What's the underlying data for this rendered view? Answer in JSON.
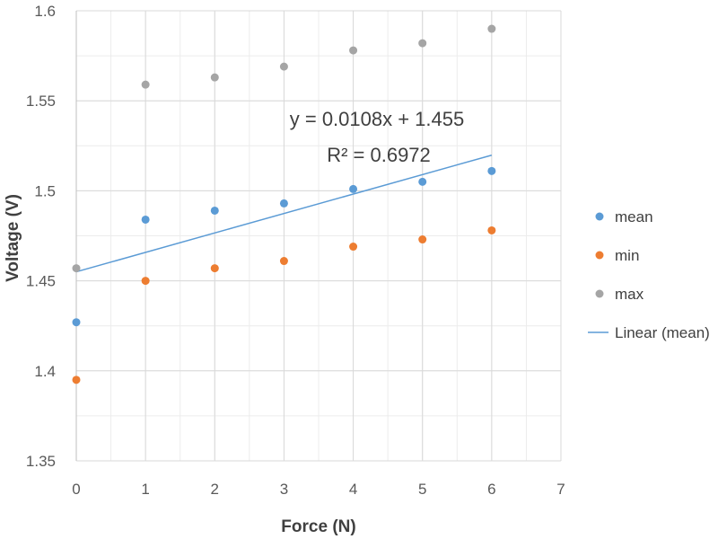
{
  "chart_data": {
    "type": "scatter",
    "title": "",
    "xlabel": "Force   (N)",
    "ylabel": "Voltage   (V)",
    "xlim": [
      0,
      7
    ],
    "ylim": [
      1.35,
      1.6
    ],
    "x_ticks": [
      "0",
      "1",
      "2",
      "3",
      "4",
      "5",
      "6",
      "7"
    ],
    "y_ticks": [
      "1.35",
      "1.4",
      "1.45",
      "1.5",
      "1.55",
      "1.6"
    ],
    "grid": true,
    "legend_position": "right",
    "x": [
      0,
      1,
      2,
      3,
      4,
      5,
      6
    ],
    "series": [
      {
        "name": "mean",
        "color": "#5B9BD5",
        "values": [
          1.427,
          1.484,
          1.489,
          1.493,
          1.501,
          1.505,
          1.511
        ]
      },
      {
        "name": "min",
        "color": "#ED7D31",
        "values": [
          1.395,
          1.45,
          1.457,
          1.461,
          1.469,
          1.473,
          1.478
        ]
      },
      {
        "name": "max",
        "color": "#A5A5A5",
        "values": [
          1.457,
          1.559,
          1.563,
          1.569,
          1.578,
          1.582,
          1.59
        ]
      }
    ],
    "trendline": {
      "name": "Linear (mean)",
      "color": "#5B9BD5",
      "x_range": [
        0,
        6
      ],
      "slope": 0.0108,
      "intercept": 1.455,
      "equation": "y = 0.0108x + 1.455",
      "r_squared_label": "R² = 0.6972"
    }
  }
}
